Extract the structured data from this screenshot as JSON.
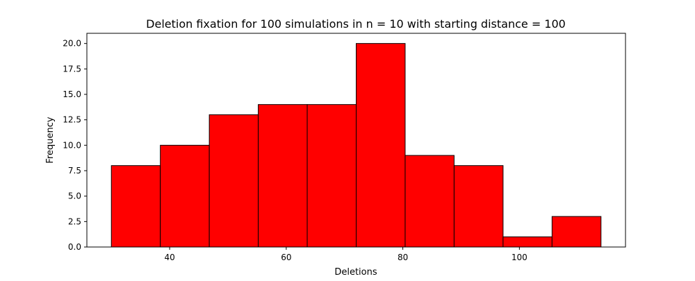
{
  "chart_data": {
    "type": "bar",
    "title": "Deletion fixation for 100 simulations in n = 10 with starting distance = 100",
    "xlabel": "Deletions",
    "ylabel": "Frequency",
    "bin_edges": [
      30.0,
      38.4,
      46.8,
      55.2,
      63.6,
      72.0,
      80.4,
      88.8,
      97.2,
      105.6,
      114.0
    ],
    "values": [
      8,
      10,
      13,
      14,
      14,
      20,
      9,
      8,
      1,
      3
    ],
    "xlim": [
      25.8,
      118.2
    ],
    "ylim": [
      0,
      21
    ],
    "xticks": [
      40,
      60,
      80,
      100
    ],
    "yticks": [
      0.0,
      2.5,
      5.0,
      7.5,
      10.0,
      12.5,
      15.0,
      17.5,
      20.0
    ],
    "xtick_labels": [
      "40",
      "60",
      "80",
      "100"
    ],
    "ytick_labels": [
      "0.0",
      "2.5",
      "5.0",
      "7.5",
      "10.0",
      "12.5",
      "15.0",
      "17.5",
      "20.0"
    ],
    "grid": false,
    "legend": "none",
    "colors": {
      "bar_fill": "#ff0000",
      "bar_edge": "#000000",
      "axes": "#000000"
    }
  }
}
